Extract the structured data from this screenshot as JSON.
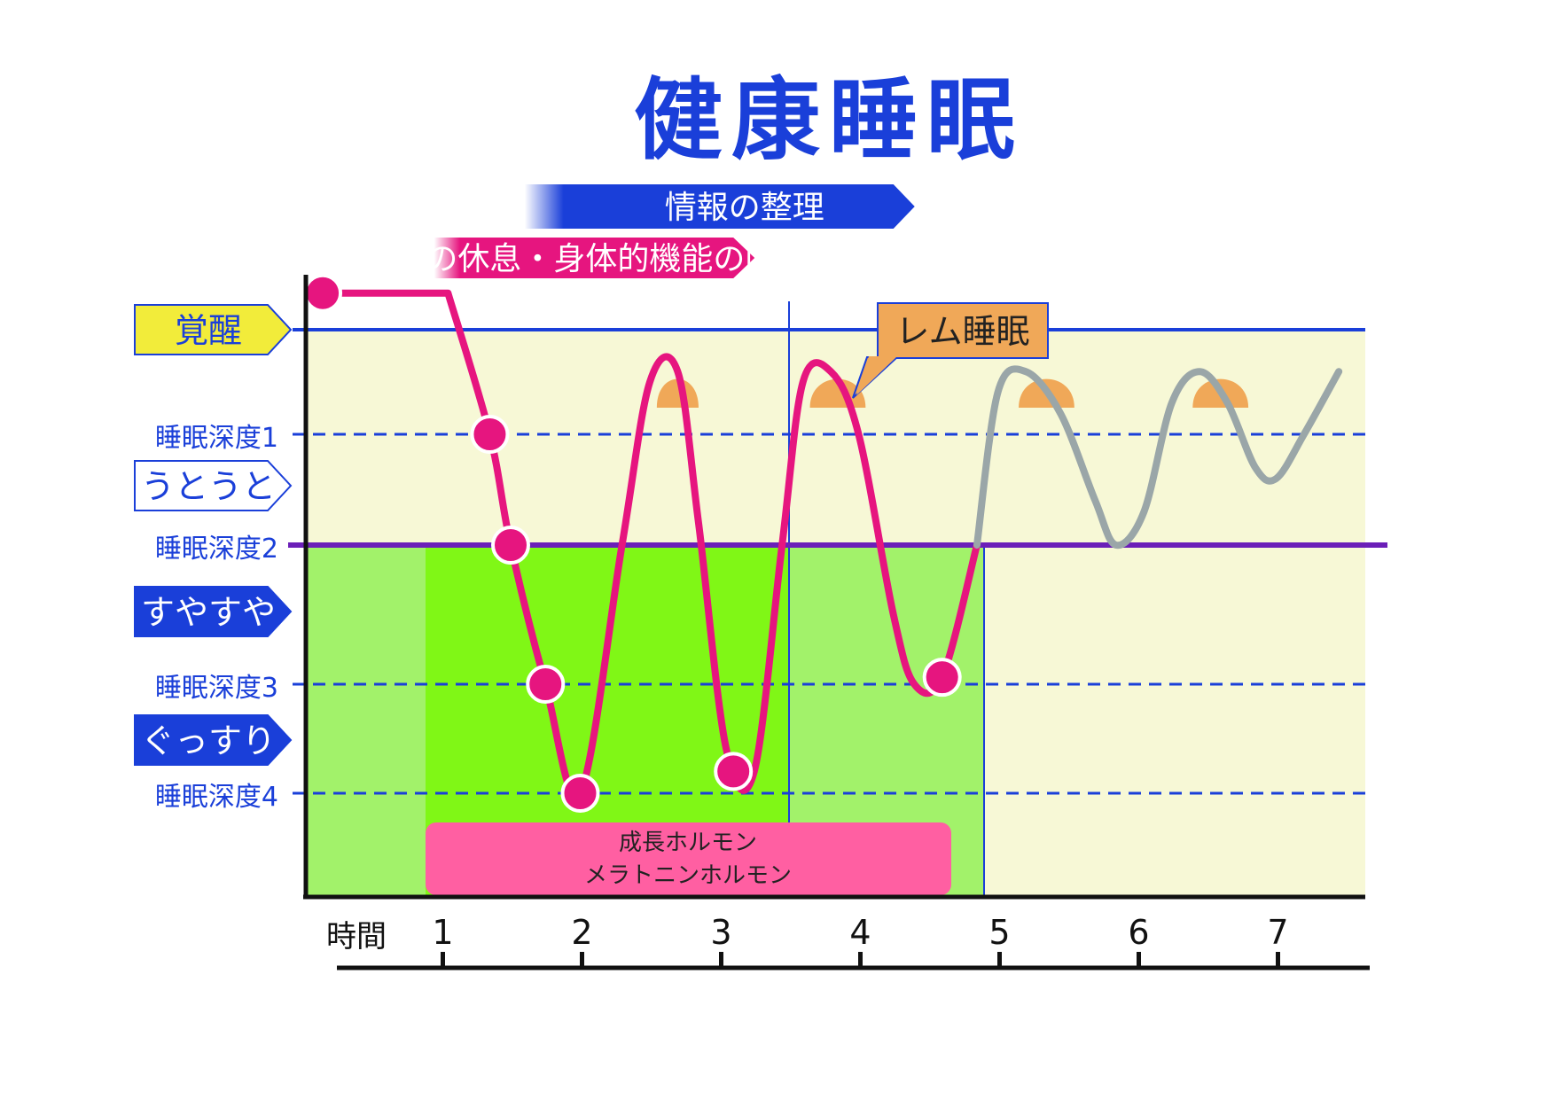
{
  "chart_data": {
    "type": "line",
    "title": "健康睡眠",
    "xlabel": "時間",
    "x_ticks": [
      1,
      2,
      3,
      4,
      5,
      6,
      7
    ],
    "xlim": [
      0,
      7
    ],
    "y_levels": [
      {
        "level": 0,
        "label": "覚醒"
      },
      {
        "level": 1,
        "label": "睡眠深度1"
      },
      {
        "level": 2,
        "label": "睡眠深度2"
      },
      {
        "level": 3,
        "label": "睡眠深度3"
      },
      {
        "level": 4,
        "label": "睡眠深度4"
      }
    ],
    "state_tags": [
      {
        "label": "覚醒",
        "color": "#f2ec3a"
      },
      {
        "label": "うとうと",
        "color": "#ffffff"
      },
      {
        "label": "すやすや",
        "color": "#1a3fd9"
      },
      {
        "label": "ぐっすり",
        "color": "#1a3fd9"
      }
    ],
    "banners": [
      {
        "label": "情報の整理",
        "color": "#1a3fd9",
        "x_start": 1.1,
        "x_end": 3.75
      },
      {
        "label": "脳の休息・身体的機能の回復",
        "color": "#e6157f",
        "x_start": 0.45,
        "x_end": 2.6
      }
    ],
    "annotation": {
      "label": "レム睡眠",
      "color": "#f0a858"
    },
    "hormone_box": {
      "lines": [
        "成長ホルモン",
        "メラトニンホルモン"
      ],
      "color": "#ff5fa2"
    },
    "series": [
      {
        "name": "",
        "color": "#e6157f",
        "points": [
          [
            -0.35,
            -0.35
          ],
          [
            0.55,
            -0.35
          ],
          [
            0.85,
            1.0
          ],
          [
            1.0,
            2.0
          ],
          [
            1.25,
            3.0
          ],
          [
            1.5,
            4.0
          ],
          [
            1.8,
            2.0
          ],
          [
            2.0,
            0.5
          ],
          [
            2.2,
            0.4
          ],
          [
            2.35,
            1.8
          ],
          [
            2.55,
            3.6
          ],
          [
            2.75,
            3.8
          ],
          [
            2.95,
            2.0
          ],
          [
            3.1,
            0.5
          ],
          [
            3.3,
            0.4
          ],
          [
            3.5,
            1.0
          ],
          [
            3.75,
            2.5
          ],
          [
            3.9,
            3.0
          ],
          [
            4.1,
            2.95
          ],
          [
            4.35,
            2.0
          ]
        ],
        "markers": [
          [
            -0.35,
            -0.35
          ],
          [
            0.85,
            1.0
          ],
          [
            1.0,
            2.0
          ],
          [
            1.25,
            3.0
          ],
          [
            1.5,
            4.0
          ],
          [
            2.6,
            3.8
          ],
          [
            4.1,
            2.95
          ]
        ]
      },
      {
        "name": "",
        "color": "#9aa6a8",
        "points": [
          [
            4.35,
            2.0
          ],
          [
            4.5,
            0.6
          ],
          [
            4.7,
            0.4
          ],
          [
            4.95,
            0.8
          ],
          [
            5.2,
            1.6
          ],
          [
            5.35,
            2.0
          ],
          [
            5.55,
            1.7
          ],
          [
            5.75,
            0.7
          ],
          [
            5.95,
            0.4
          ],
          [
            6.15,
            0.7
          ],
          [
            6.35,
            1.3
          ],
          [
            6.5,
            1.4
          ],
          [
            6.7,
            1.0
          ],
          [
            6.95,
            0.4
          ]
        ]
      }
    ],
    "rem_periods": [
      [
        1.95,
        2.28
      ],
      [
        3.1,
        3.55
      ],
      [
        4.55,
        5.05
      ],
      [
        5.8,
        6.25
      ]
    ]
  }
}
